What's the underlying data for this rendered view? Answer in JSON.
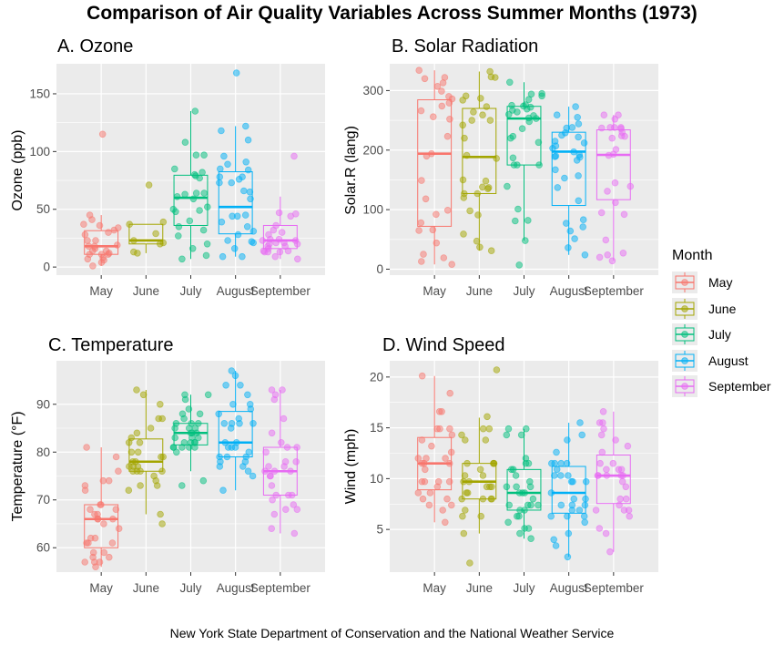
{
  "title": "Comparison of Air Quality Variables Across Summer Months (1973)",
  "caption": "New York State Department of Conservation and the National Weather Service",
  "legend": {
    "title": "Month",
    "items": [
      {
        "label": "May",
        "color": "#F8766D"
      },
      {
        "label": "June",
        "color": "#A3A500"
      },
      {
        "label": "July",
        "color": "#00BF7D"
      },
      {
        "label": "August",
        "color": "#00B0F6"
      },
      {
        "label": "September",
        "color": "#E76BF3"
      }
    ]
  },
  "chart_data": [
    {
      "type": "box",
      "panel_title": "A. Ozone",
      "ylabel": "Ozone (ppb)",
      "categories": [
        "May",
        "June",
        "July",
        "August",
        "September"
      ],
      "ylim": [
        -7,
        176
      ],
      "yticks": [
        0,
        50,
        100,
        150
      ],
      "boxes": [
        {
          "q1": 11,
          "median": 18,
          "q3": 31.5,
          "lower": 1,
          "upper": 45
        },
        {
          "q1": 20,
          "median": 23,
          "q3": 37,
          "lower": 12,
          "upper": 37
        },
        {
          "q1": 36,
          "median": 60,
          "q3": 79.5,
          "lower": 7,
          "upper": 135
        },
        {
          "q1": 28.75,
          "median": 52,
          "q3": 82.5,
          "lower": 9,
          "upper": 122
        },
        {
          "q1": 16,
          "median": 23,
          "q3": 36,
          "lower": 7,
          "upper": 61
        }
      ],
      "points": [
        [
          41,
          36,
          12,
          18,
          28,
          23,
          19,
          8,
          7,
          16,
          11,
          14,
          18,
          14,
          34,
          6,
          30,
          11,
          1,
          11,
          4,
          32,
          23,
          45,
          115,
          37
        ],
        [
          29,
          71,
          39,
          23,
          21,
          37,
          20,
          12,
          13
        ],
        [
          135,
          49,
          32,
          64,
          40,
          77,
          97,
          97,
          85,
          10,
          27,
          7,
          48,
          35,
          61,
          79,
          63,
          16,
          80,
          108,
          20,
          52,
          82,
          50,
          64,
          59
        ],
        [
          39,
          9,
          16,
          78,
          35,
          66,
          122,
          89,
          110,
          44,
          28,
          65,
          22,
          59,
          23,
          31,
          44,
          21,
          9,
          45,
          168,
          73,
          76,
          118,
          84,
          85,
          96,
          78,
          73,
          91
        ],
        [
          47,
          32,
          20,
          23,
          21,
          24,
          44,
          21,
          28,
          9,
          13,
          46,
          18,
          13,
          24,
          16,
          13,
          23,
          36,
          7,
          14,
          30,
          14,
          18,
          20,
          96
        ]
      ]
    },
    {
      "type": "box",
      "panel_title": "B. Solar Radiation",
      "ylabel": "Solar.R (lang)",
      "categories": [
        "May",
        "June",
        "July",
        "August",
        "September"
      ],
      "ylim": [
        -10,
        345
      ],
      "yticks": [
        0,
        100,
        200,
        300
      ],
      "boxes": [
        {
          "q1": 72,
          "median": 194,
          "q3": 284.5,
          "lower": 8,
          "upper": 334
        },
        {
          "q1": 127,
          "median": 188.5,
          "q3": 270,
          "lower": 31,
          "upper": 332
        },
        {
          "q1": 175,
          "median": 253,
          "q3": 273.5,
          "lower": 48,
          "upper": 314
        },
        {
          "q1": 107,
          "median": 197.5,
          "q3": 230,
          "lower": 24,
          "upper": 273
        },
        {
          "q1": 116.75,
          "median": 192,
          "q3": 234,
          "lower": 14,
          "upper": 259
        }
      ],
      "points": [
        [
          190,
          118,
          149,
          313,
          299,
          99,
          19,
          194,
          256,
          290,
          274,
          65,
          334,
          307,
          78,
          322,
          44,
          8,
          320,
          25,
          92,
          66,
          266,
          13,
          252,
          223,
          279,
          286
        ],
        [
          287,
          242,
          186,
          220,
          264,
          127,
          273,
          291,
          323,
          259,
          250,
          148,
          332,
          322,
          191,
          284,
          37,
          120,
          137,
          150,
          59,
          91,
          250,
          135,
          127,
          47,
          98,
          31,
          138
        ],
        [
          269,
          248,
          236,
          101,
          175,
          314,
          276,
          267,
          272,
          175,
          139,
          264,
          175,
          291,
          48,
          260,
          274,
          285,
          187,
          220,
          7,
          258,
          295,
          294,
          223,
          81,
          82,
          213,
          275,
          253,
          254
        ],
        [
          83,
          24,
          77,
          255,
          229,
          207,
          222,
          137,
          192,
          273,
          157,
          64,
          71,
          51,
          115,
          244,
          190,
          259,
          36,
          212,
          238,
          215,
          153,
          203,
          225,
          237,
          188,
          167,
          197,
          183,
          189
        ],
        [
          95,
          92,
          252,
          220,
          230,
          259,
          236,
          259,
          238,
          24,
          112,
          237,
          224,
          27,
          238,
          201,
          238,
          14,
          139,
          49,
          20,
          193,
          145,
          191,
          131,
          223
        ]
      ]
    },
    {
      "type": "box",
      "panel_title": "C. Temperature",
      "ylabel": "Temperature (°F)",
      "categories": [
        "May",
        "June",
        "July",
        "August",
        "September"
      ],
      "ylim": [
        54.9,
        99.1
      ],
      "yticks": [
        60,
        70,
        80,
        90
      ],
      "boxes": [
        {
          "q1": 60,
          "median": 66,
          "q3": 69,
          "lower": 56,
          "upper": 81
        },
        {
          "q1": 76,
          "median": 78,
          "q3": 82.75,
          "lower": 67,
          "upper": 93
        },
        {
          "q1": 81.5,
          "median": 84,
          "q3": 86,
          "lower": 76,
          "upper": 92
        },
        {
          "q1": 79,
          "median": 82,
          "q3": 88.5,
          "lower": 72,
          "upper": 97
        },
        {
          "q1": 71,
          "median": 76,
          "q3": 81,
          "lower": 63,
          "upper": 93
        }
      ],
      "points": [
        [
          67,
          72,
          74,
          62,
          56,
          66,
          65,
          59,
          61,
          69,
          74,
          69,
          66,
          68,
          58,
          64,
          66,
          57,
          68,
          62,
          59,
          73,
          61,
          61,
          57,
          58,
          57,
          67,
          81,
          79,
          76
        ],
        [
          78,
          74,
          67,
          84,
          85,
          79,
          82,
          87,
          90,
          87,
          93,
          92,
          82,
          80,
          79,
          77,
          72,
          65,
          73,
          76,
          77,
          76,
          76,
          76,
          75,
          78,
          73,
          80,
          77,
          83
        ],
        [
          84,
          85,
          81,
          84,
          83,
          83,
          88,
          92,
          92,
          89,
          82,
          73,
          81,
          91,
          80,
          81,
          82,
          84,
          87,
          85,
          74,
          81,
          82,
          86,
          85,
          82,
          86,
          88,
          86,
          83,
          81
        ],
        [
          81,
          81,
          82,
          86,
          85,
          87,
          89,
          90,
          90,
          92,
          86,
          86,
          82,
          80,
          79,
          77,
          79,
          76,
          78,
          78,
          77,
          72,
          75,
          79,
          81,
          86,
          88,
          97,
          94,
          96,
          94
        ],
        [
          91,
          92,
          93,
          93,
          87,
          84,
          80,
          78,
          75,
          73,
          81,
          76,
          77,
          71,
          71,
          78,
          67,
          76,
          68,
          82,
          64,
          71,
          81,
          69,
          63,
          70,
          77,
          75,
          76,
          68
        ]
      ]
    },
    {
      "type": "box",
      "panel_title": "D. Wind Speed",
      "ylabel": "Wind (mph)",
      "categories": [
        "May",
        "June",
        "July",
        "August",
        "September"
      ],
      "ylim": [
        0.8,
        21.6
      ],
      "yticks": [
        5,
        10,
        15,
        20
      ],
      "boxes": [
        {
          "q1": 8.9,
          "median": 11.5,
          "q3": 14.05,
          "lower": 5.7,
          "upper": 20.1
        },
        {
          "q1": 8,
          "median": 9.7,
          "q3": 11.5,
          "lower": 4.6,
          "upper": 16
        },
        {
          "q1": 6.9,
          "median": 8.6,
          "q3": 10.9,
          "lower": 4.1,
          "upper": 14.9
        },
        {
          "q1": 6.6,
          "median": 8.6,
          "q3": 11.2,
          "lower": 2.3,
          "upper": 15.5
        },
        {
          "q1": 7.55,
          "median": 10.3,
          "q3": 12.325,
          "lower": 2.8,
          "upper": 16.6
        }
      ],
      "points": [
        [
          7.4,
          8,
          12.6,
          11.5,
          14.3,
          14.9,
          8.6,
          13.8,
          20.1,
          8.6,
          6.9,
          9.7,
          9.2,
          10.9,
          13.2,
          11.5,
          12,
          18.4,
          11.5,
          9.7,
          9.7,
          16.6,
          9.7,
          12,
          16.6,
          14.9,
          8,
          12,
          14.9,
          5.7,
          7.4
        ],
        [
          8.6,
          9.7,
          16.1,
          9.2,
          8.6,
          14.3,
          9.7,
          6.9,
          13.8,
          11.5,
          10.9,
          9.2,
          8,
          13.8,
          11.5,
          14.9,
          20.7,
          9.2,
          11.5,
          10.3,
          6.3,
          1.7,
          4.6,
          6.3,
          8,
          8,
          10.3,
          11.5,
          14.9,
          8
        ],
        [
          4.1,
          9.2,
          9.2,
          10.9,
          4.6,
          10.9,
          5.1,
          6.3,
          5.7,
          7.4,
          8.6,
          14.3,
          14.9,
          14.9,
          14.3,
          6.9,
          10.3,
          6.3,
          5.1,
          11.5,
          6.9,
          9.7,
          11.5,
          8.6,
          8,
          8.6,
          12,
          7.4,
          7.4,
          7.4,
          9.2
        ],
        [
          6.9,
          13.8,
          7.4,
          6.9,
          7.4,
          4.6,
          4,
          10.3,
          8,
          8.6,
          11.5,
          11.5,
          11.5,
          9.7,
          11.5,
          10.3,
          6.3,
          7.4,
          10.9,
          10.3,
          15.5,
          14.3,
          12.6,
          9.7,
          3.4,
          8,
          5.7,
          9.7,
          2.3,
          6.3,
          6.3
        ],
        [
          6.9,
          5.1,
          2.8,
          4.6,
          7.4,
          15.5,
          10.9,
          10.3,
          10.9,
          9.7,
          14.9,
          15.5,
          6.3,
          10.9,
          11.5,
          6.9,
          13.8,
          10.3,
          10.3,
          8,
          12.6,
          9.2,
          10.3,
          10.3,
          16.6,
          6.9,
          13.2,
          14.3,
          8,
          11.5
        ]
      ]
    }
  ]
}
